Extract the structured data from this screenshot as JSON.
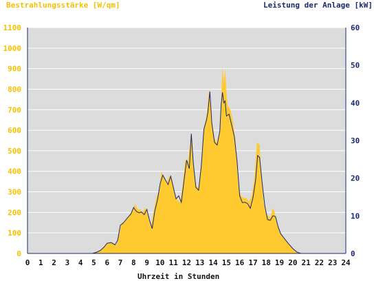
{
  "colors": {
    "irradiance": "#ffc930",
    "irradiance_axis": "#f7c000",
    "power": "#1a2a6e",
    "plot_bg": "#dcdcdc",
    "grid": "#ffffff",
    "x_axis_text": "#111111"
  },
  "chart_data": {
    "type": "area",
    "title_left": "Bestrahlungsstärke [W/qm]",
    "title_right": "Leistung der Anlage [kW]",
    "xlabel": "Uhrzeit in Stunden",
    "xlim": [
      0,
      24
    ],
    "ylim_left": [
      0,
      1100
    ],
    "ylim_right": [
      0,
      60
    ],
    "x_ticks": [
      "0",
      "1",
      "2",
      "3",
      "4",
      "5",
      "6",
      "7",
      "8",
      "9",
      "10",
      "11",
      "12",
      "13",
      "14",
      "15",
      "16",
      "17",
      "18",
      "19",
      "20",
      "21",
      "22",
      "23",
      "24"
    ],
    "y_left_ticks": [
      "0",
      "100",
      "200",
      "300",
      "400",
      "500",
      "600",
      "700",
      "800",
      "900",
      "1000",
      "1100"
    ],
    "y_right_ticks": [
      "0",
      "10",
      "20",
      "30",
      "40",
      "50",
      "60"
    ],
    "grid": "horizontal",
    "series": [
      {
        "name": "Bestrahlungsstärke [W/qm]",
        "axis": "left",
        "style": "filled-area",
        "points": [
          [
            0,
            0
          ],
          [
            4.8,
            0
          ],
          [
            5,
            5
          ],
          [
            5.3,
            10
          ],
          [
            5.6,
            20
          ],
          [
            5.9,
            40
          ],
          [
            6.1,
            55
          ],
          [
            6.4,
            55
          ],
          [
            6.7,
            40
          ],
          [
            6.9,
            90
          ],
          [
            7.1,
            150
          ],
          [
            7.3,
            150
          ],
          [
            7.6,
            180
          ],
          [
            7.9,
            210
          ],
          [
            8.1,
            240
          ],
          [
            8.3,
            215
          ],
          [
            8.5,
            215
          ],
          [
            8.7,
            200
          ],
          [
            8.9,
            225
          ],
          [
            9.1,
            180
          ],
          [
            9.3,
            130
          ],
          [
            9.5,
            200
          ],
          [
            9.7,
            270
          ],
          [
            9.9,
            300
          ],
          [
            10.1,
            400
          ],
          [
            10.3,
            370
          ],
          [
            10.5,
            340
          ],
          [
            10.7,
            380
          ],
          [
            10.9,
            360
          ],
          [
            11.1,
            290
          ],
          [
            11.3,
            260
          ],
          [
            11.5,
            250
          ],
          [
            11.7,
            330
          ],
          [
            11.9,
            460
          ],
          [
            12.1,
            440
          ],
          [
            12.3,
            560
          ],
          [
            12.4,
            580
          ],
          [
            12.5,
            430
          ],
          [
            12.7,
            330
          ],
          [
            12.9,
            320
          ],
          [
            13.1,
            440
          ],
          [
            13.3,
            610
          ],
          [
            13.5,
            670
          ],
          [
            13.7,
            800
          ],
          [
            13.9,
            650
          ],
          [
            14.1,
            560
          ],
          [
            14.3,
            540
          ],
          [
            14.5,
            600
          ],
          [
            14.6,
            750
          ],
          [
            14.7,
            910
          ],
          [
            14.8,
            830
          ],
          [
            14.9,
            900
          ],
          [
            15.0,
            780
          ],
          [
            15.1,
            720
          ],
          [
            15.3,
            700
          ],
          [
            15.5,
            640
          ],
          [
            15.7,
            530
          ],
          [
            15.9,
            330
          ],
          [
            16.1,
            280
          ],
          [
            16.3,
            270
          ],
          [
            16.5,
            270
          ],
          [
            16.7,
            250
          ],
          [
            16.9,
            280
          ],
          [
            17.1,
            360
          ],
          [
            17.3,
            540
          ],
          [
            17.5,
            530
          ],
          [
            17.6,
            400
          ],
          [
            17.8,
            250
          ],
          [
            18,
            190
          ],
          [
            18.3,
            175
          ],
          [
            18.5,
            220
          ],
          [
            18.6,
            210
          ],
          [
            18.8,
            150
          ],
          [
            19,
            110
          ],
          [
            19.3,
            75
          ],
          [
            19.6,
            55
          ],
          [
            19.9,
            30
          ],
          [
            20.2,
            10
          ],
          [
            20.5,
            0
          ],
          [
            24,
            0
          ]
        ]
      },
      {
        "name": "Leistung der Anlage [kW]",
        "axis": "right",
        "style": "line",
        "points": [
          [
            0,
            0
          ],
          [
            4.9,
            0
          ],
          [
            5.2,
            0.3
          ],
          [
            5.5,
            0.8
          ],
          [
            5.8,
            1.8
          ],
          [
            6.0,
            2.7
          ],
          [
            6.3,
            2.9
          ],
          [
            6.6,
            2.3
          ],
          [
            6.8,
            3.5
          ],
          [
            7.0,
            7.5
          ],
          [
            7.2,
            8.0
          ],
          [
            7.5,
            9.3
          ],
          [
            7.8,
            10.5
          ],
          [
            8.0,
            12.2
          ],
          [
            8.2,
            11.2
          ],
          [
            8.4,
            10.8
          ],
          [
            8.6,
            11.0
          ],
          [
            8.8,
            10.3
          ],
          [
            9.0,
            11.7
          ],
          [
            9.2,
            8.8
          ],
          [
            9.4,
            6.6
          ],
          [
            9.6,
            11.3
          ],
          [
            9.8,
            14.2
          ],
          [
            10.0,
            18.5
          ],
          [
            10.2,
            20.8
          ],
          [
            10.4,
            19.5
          ],
          [
            10.6,
            18.3
          ],
          [
            10.8,
            20.5
          ],
          [
            11.0,
            17.5
          ],
          [
            11.2,
            14.5
          ],
          [
            11.4,
            15.3
          ],
          [
            11.6,
            13.6
          ],
          [
            11.8,
            19.3
          ],
          [
            12.0,
            24.8
          ],
          [
            12.2,
            22.5
          ],
          [
            12.35,
            31.8
          ],
          [
            12.5,
            24.0
          ],
          [
            12.7,
            17.5
          ],
          [
            12.9,
            16.8
          ],
          [
            13.1,
            23.0
          ],
          [
            13.3,
            33.0
          ],
          [
            13.5,
            35.5
          ],
          [
            13.6,
            37.5
          ],
          [
            13.75,
            43.0
          ],
          [
            13.9,
            34.5
          ],
          [
            14.1,
            29.5
          ],
          [
            14.3,
            28.8
          ],
          [
            14.5,
            32.5
          ],
          [
            14.6,
            39.5
          ],
          [
            14.7,
            42.8
          ],
          [
            14.8,
            40.0
          ],
          [
            14.9,
            40.5
          ],
          [
            15.0,
            36.5
          ],
          [
            15.2,
            37.0
          ],
          [
            15.4,
            34.0
          ],
          [
            15.6,
            31.0
          ],
          [
            15.8,
            24.5
          ],
          [
            16.0,
            15.3
          ],
          [
            16.2,
            13.5
          ],
          [
            16.4,
            13.6
          ],
          [
            16.6,
            13.2
          ],
          [
            16.8,
            12.0
          ],
          [
            17.0,
            14.8
          ],
          [
            17.2,
            19.5
          ],
          [
            17.35,
            26.0
          ],
          [
            17.5,
            25.5
          ],
          [
            17.7,
            18.5
          ],
          [
            17.9,
            12.5
          ],
          [
            18.1,
            9.0
          ],
          [
            18.3,
            8.8
          ],
          [
            18.5,
            10.0
          ],
          [
            18.7,
            9.8
          ],
          [
            18.9,
            7.0
          ],
          [
            19.1,
            5.2
          ],
          [
            19.4,
            3.8
          ],
          [
            19.7,
            2.5
          ],
          [
            20.0,
            1.3
          ],
          [
            20.3,
            0.4
          ],
          [
            20.6,
            0
          ],
          [
            24,
            0
          ]
        ]
      }
    ]
  }
}
